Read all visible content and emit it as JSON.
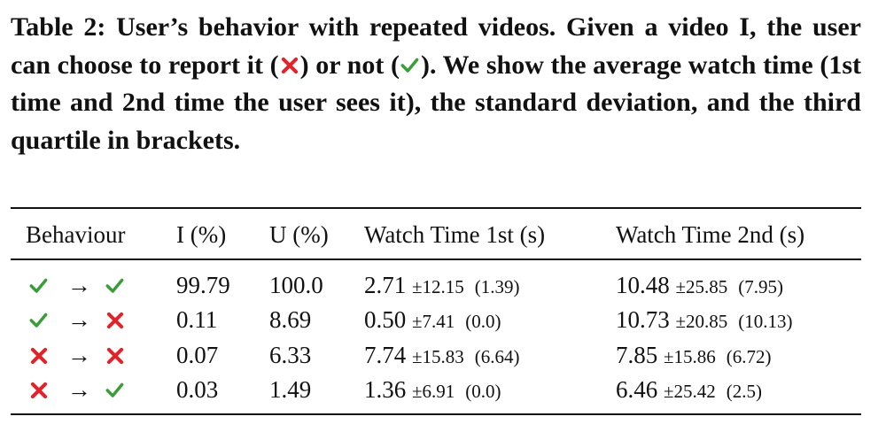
{
  "caption": {
    "parts": [
      "Table 2: User’s behavior with repeated videos. Given a video I, the user can choose to report it (",
      ") or not (",
      "). We show the average watch time (1st time and 2nd time the user sees it), the standard deviation, and the third quartile in brackets."
    ]
  },
  "table": {
    "header": [
      "Behaviour",
      "I (%)",
      "U (%)",
      "Watch Time 1st (s)",
      "Watch Time 2nd (s)"
    ],
    "rows": [
      {
        "arrow": "→",
        "i": "99.79",
        "u": "100.0",
        "wt1": {
          "mean": "2.71",
          "std": "±12.15",
          "q3": "(1.39)"
        },
        "wt2": {
          "mean": "10.48",
          "std": "±25.85",
          "q3": "(7.95)"
        }
      },
      {
        "arrow": "→",
        "i": "0.11",
        "u": "8.69",
        "wt1": {
          "mean": "0.50",
          "std": "±7.41",
          "q3": "(0.0)"
        },
        "wt2": {
          "mean": "10.73",
          "std": "±20.85",
          "q3": "(10.13)"
        }
      },
      {
        "arrow": "→",
        "i": "0.07",
        "u": "6.33",
        "wt1": {
          "mean": "7.74",
          "std": "±15.83",
          "q3": "(6.64)"
        },
        "wt2": {
          "mean": "7.85",
          "std": "±15.86",
          "q3": "(6.72)"
        }
      },
      {
        "arrow": "→",
        "i": "0.03",
        "u": "1.49",
        "wt1": {
          "mean": "1.36",
          "std": "±6.91",
          "q3": "(0.0)"
        },
        "wt2": {
          "mean": "6.46",
          "std": "±25.42",
          "q3": "(2.5)"
        }
      }
    ]
  }
}
